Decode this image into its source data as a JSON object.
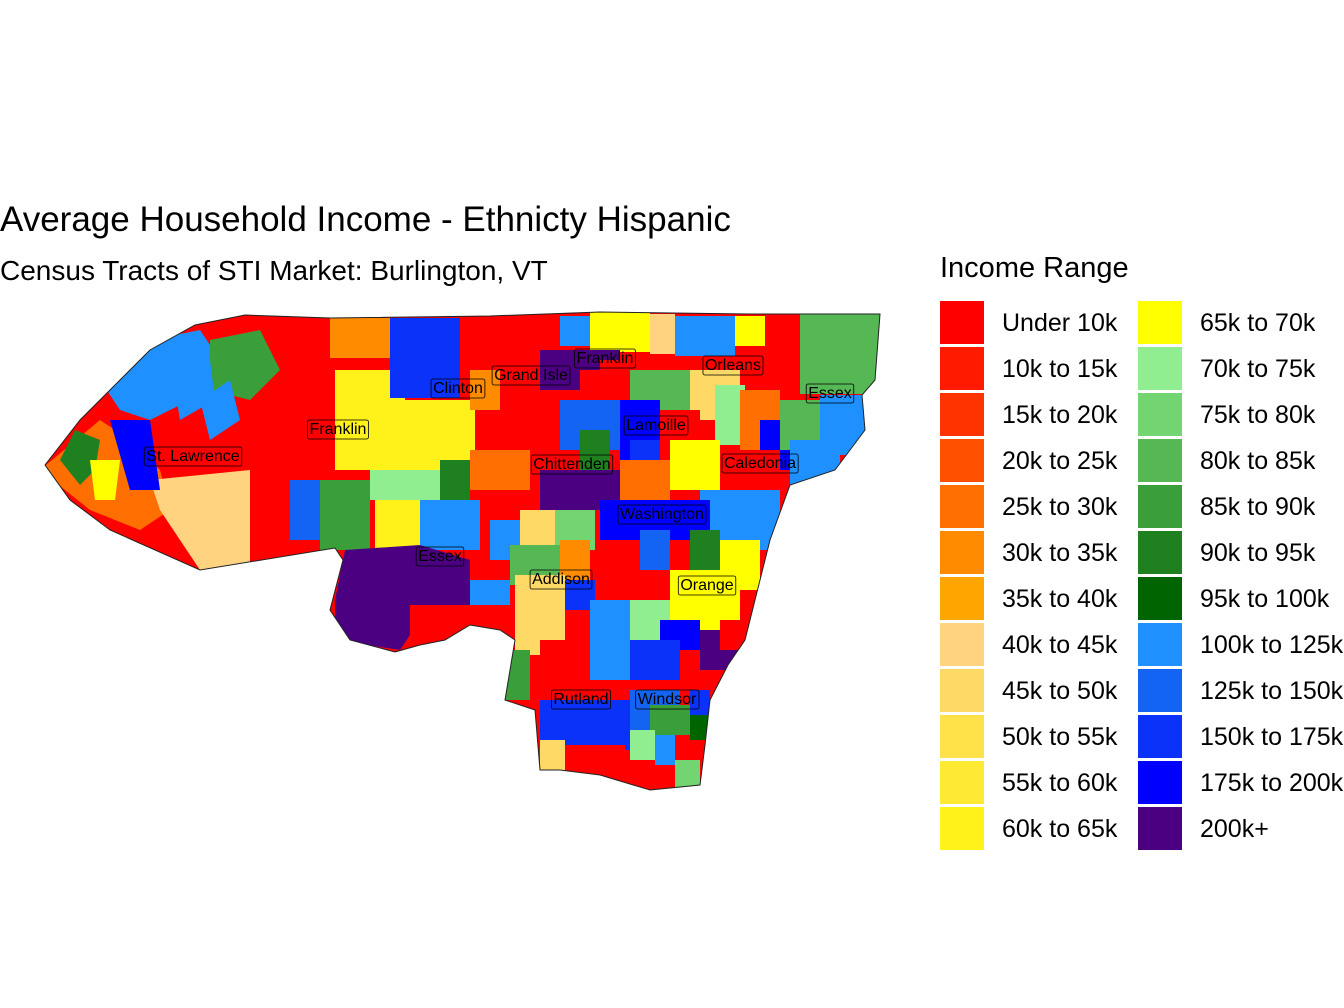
{
  "title": "Average Household Income - Ethnicty Hispanic",
  "subtitle": "Census Tracts of STI Market: Burlington, VT",
  "legend": {
    "title": "Income Range",
    "items": [
      {
        "label": "Under 10k",
        "color": "#FF0000"
      },
      {
        "label": "10k to 15k",
        "color": "#FF1A00"
      },
      {
        "label": "15k to 20k",
        "color": "#FF3300"
      },
      {
        "label": "20k to 25k",
        "color": "#FF5000"
      },
      {
        "label": "25k to 30k",
        "color": "#FF6E00"
      },
      {
        "label": "30k to 35k",
        "color": "#FF8C00"
      },
      {
        "label": "35k to 40k",
        "color": "#FFA500"
      },
      {
        "label": "40k to 45k",
        "color": "#FFD37F"
      },
      {
        "label": "45k to 50k",
        "color": "#FFD966"
      },
      {
        "label": "50k to 55k",
        "color": "#FFE14A"
      },
      {
        "label": "55k to 60k",
        "color": "#FFEA33"
      },
      {
        "label": "60k to 65k",
        "color": "#FFF21A"
      },
      {
        "label": "65k to 70k",
        "color": "#FFFF00"
      },
      {
        "label": "70k to 75k",
        "color": "#90EE90"
      },
      {
        "label": "75k to 80k",
        "color": "#72D572"
      },
      {
        "label": "80k to 85k",
        "color": "#55B855"
      },
      {
        "label": "85k to 90k",
        "color": "#3A9E3A"
      },
      {
        "label": "90k to 95k",
        "color": "#1F801F"
      },
      {
        "label": "95k to 100k",
        "color": "#006400"
      },
      {
        "label": "100k to 125k",
        "color": "#1E90FF"
      },
      {
        "label": "125k to 150k",
        "color": "#1464F4"
      },
      {
        "label": "150k to 175k",
        "color": "#0A32F8"
      },
      {
        "label": "175k to 200k",
        "color": "#0000FF"
      },
      {
        "label": "200k+",
        "color": "#4B0082"
      }
    ]
  },
  "counties": [
    {
      "name": "St. Lawrence"
    },
    {
      "name": "Franklin"
    },
    {
      "name": "Clinton"
    },
    {
      "name": "Grand Isle"
    },
    {
      "name": "Franklin"
    },
    {
      "name": "Orleans"
    },
    {
      "name": "Essex"
    },
    {
      "name": "Lamoille"
    },
    {
      "name": "Chittenden"
    },
    {
      "name": "Caledonia"
    },
    {
      "name": "Washington"
    },
    {
      "name": "Essex"
    },
    {
      "name": "Addison"
    },
    {
      "name": "Orange"
    },
    {
      "name": "Rutland"
    },
    {
      "name": "Windsor"
    }
  ]
}
